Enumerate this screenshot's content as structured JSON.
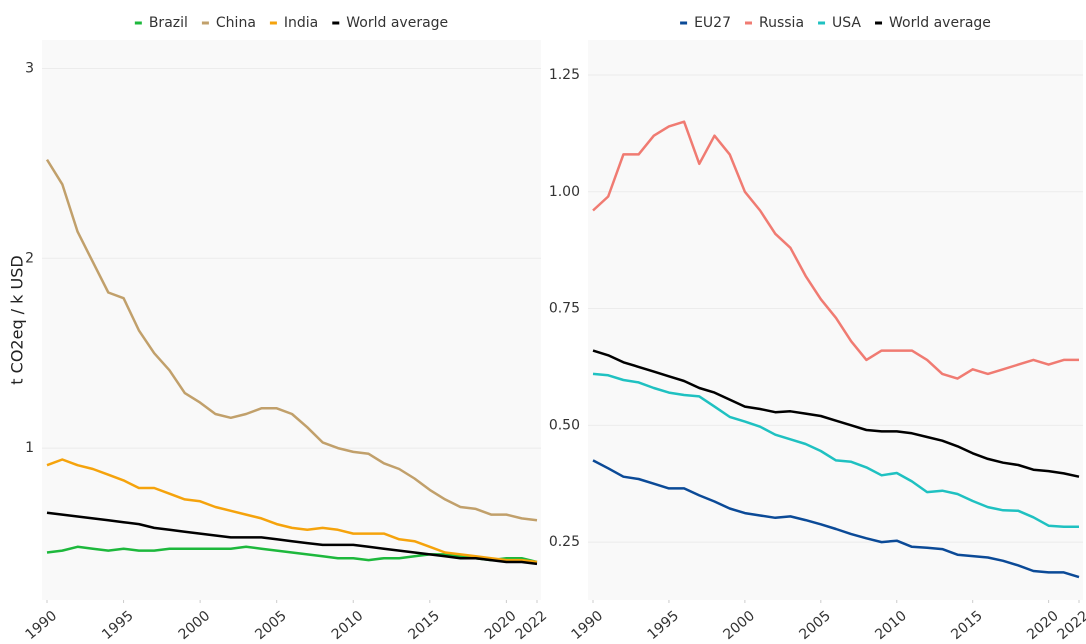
{
  "chart_data": [
    {
      "type": "line",
      "ylabel": "t CO2eq / k USD",
      "legend": "top",
      "x": [
        1990,
        1991,
        1992,
        1993,
        1994,
        1995,
        1996,
        1997,
        1998,
        1999,
        2000,
        2001,
        2002,
        2003,
        2004,
        2005,
        2006,
        2007,
        2008,
        2009,
        2010,
        2011,
        2012,
        2013,
        2014,
        2015,
        2016,
        2017,
        2018,
        2019,
        2020,
        2021,
        2022
      ],
      "xlim": [
        1990,
        2022
      ],
      "xticks": [
        1990,
        1995,
        2000,
        2005,
        2010,
        2015,
        2020,
        2022
      ],
      "ylim": [
        0.2,
        3.15
      ],
      "yticks": [
        1,
        2,
        3
      ],
      "grid": true,
      "series": [
        {
          "name": "Brazil",
          "color": "#1db83c",
          "values": [
            0.45,
            0.46,
            0.48,
            0.47,
            0.46,
            0.47,
            0.46,
            0.46,
            0.47,
            0.47,
            0.47,
            0.47,
            0.47,
            0.48,
            0.47,
            0.46,
            0.45,
            0.44,
            0.43,
            0.42,
            0.42,
            0.41,
            0.42,
            0.42,
            0.43,
            0.44,
            0.44,
            0.43,
            0.42,
            0.41,
            0.42,
            0.42,
            0.4
          ]
        },
        {
          "name": "China",
          "color": "#c1a06b",
          "values": [
            2.52,
            2.39,
            2.14,
            1.98,
            1.82,
            1.79,
            1.62,
            1.5,
            1.41,
            1.29,
            1.24,
            1.18,
            1.16,
            1.18,
            1.21,
            1.21,
            1.18,
            1.11,
            1.03,
            1.0,
            0.98,
            0.97,
            0.92,
            0.89,
            0.84,
            0.78,
            0.73,
            0.69,
            0.68,
            0.65,
            0.65,
            0.63,
            0.62
          ]
        },
        {
          "name": "India",
          "color": "#f5a30c",
          "values": [
            0.91,
            0.94,
            0.91,
            0.89,
            0.86,
            0.83,
            0.79,
            0.79,
            0.76,
            0.73,
            0.72,
            0.69,
            0.67,
            0.65,
            0.63,
            0.6,
            0.58,
            0.57,
            0.58,
            0.57,
            0.55,
            0.55,
            0.55,
            0.52,
            0.51,
            0.48,
            0.45,
            0.44,
            0.43,
            0.42,
            0.41,
            0.41,
            0.4
          ]
        },
        {
          "name": "World average",
          "color": "#000000",
          "values": [
            0.66,
            0.65,
            0.64,
            0.63,
            0.62,
            0.61,
            0.6,
            0.58,
            0.57,
            0.56,
            0.55,
            0.54,
            0.53,
            0.53,
            0.53,
            0.52,
            0.51,
            0.5,
            0.49,
            0.49,
            0.49,
            0.48,
            0.47,
            0.46,
            0.45,
            0.44,
            0.43,
            0.42,
            0.42,
            0.41,
            0.4,
            0.4,
            0.39
          ]
        }
      ]
    },
    {
      "type": "line",
      "legend": "top",
      "x": [
        1990,
        1991,
        1992,
        1993,
        1994,
        1995,
        1996,
        1997,
        1998,
        1999,
        2000,
        2001,
        2002,
        2003,
        2004,
        2005,
        2006,
        2007,
        2008,
        2009,
        2010,
        2011,
        2012,
        2013,
        2014,
        2015,
        2016,
        2017,
        2018,
        2019,
        2020,
        2021,
        2022
      ],
      "xlim": [
        1990,
        2022
      ],
      "xticks": [
        1990,
        1995,
        2000,
        2005,
        2010,
        2015,
        2020,
        2022
      ],
      "ylim": [
        0.126,
        1.325
      ],
      "yticks": [
        0.25,
        {
          "value": 0.5,
          "label": "0.50"
        },
        0.75,
        {
          "value": 1,
          "label": "1.00"
        },
        1.25
      ],
      "grid": true,
      "series": [
        {
          "name": "EU27",
          "color": "#0b4a97",
          "values": [
            0.425,
            0.408,
            0.39,
            0.385,
            0.375,
            0.365,
            0.365,
            0.35,
            0.337,
            0.322,
            0.312,
            0.307,
            0.302,
            0.305,
            0.297,
            0.288,
            0.278,
            0.267,
            0.258,
            0.25,
            0.253,
            0.24,
            0.238,
            0.235,
            0.223,
            0.22,
            0.217,
            0.21,
            0.2,
            0.188,
            0.185,
            0.185,
            0.175
          ]
        },
        {
          "name": "Russia",
          "color": "#f07b72",
          "values": [
            0.96,
            0.99,
            1.08,
            1.08,
            1.12,
            1.14,
            1.15,
            1.06,
            1.12,
            1.08,
            1.0,
            0.96,
            0.91,
            0.88,
            0.82,
            0.77,
            0.73,
            0.68,
            0.64,
            0.66,
            0.66,
            0.66,
            0.64,
            0.61,
            0.6,
            0.62,
            0.61,
            0.62,
            0.63,
            0.64,
            0.63,
            0.64,
            0.64
          ]
        },
        {
          "name": "USA",
          "color": "#1fc1c1",
          "values": [
            0.61,
            0.607,
            0.597,
            0.592,
            0.58,
            0.57,
            0.565,
            0.562,
            0.54,
            0.518,
            0.508,
            0.497,
            0.48,
            0.47,
            0.46,
            0.445,
            0.425,
            0.422,
            0.41,
            0.393,
            0.398,
            0.38,
            0.357,
            0.36,
            0.353,
            0.338,
            0.325,
            0.318,
            0.317,
            0.303,
            0.285,
            0.283,
            0.283
          ]
        },
        {
          "name": "World average",
          "color": "#000000",
          "values": [
            0.66,
            0.65,
            0.635,
            0.625,
            0.615,
            0.605,
            0.595,
            0.58,
            0.57,
            0.555,
            0.54,
            0.535,
            0.528,
            0.53,
            0.525,
            0.52,
            0.51,
            0.5,
            0.49,
            0.487,
            0.487,
            0.483,
            0.475,
            0.467,
            0.455,
            0.44,
            0.428,
            0.42,
            0.415,
            0.405,
            0.402,
            0.397,
            0.39
          ]
        }
      ]
    }
  ]
}
